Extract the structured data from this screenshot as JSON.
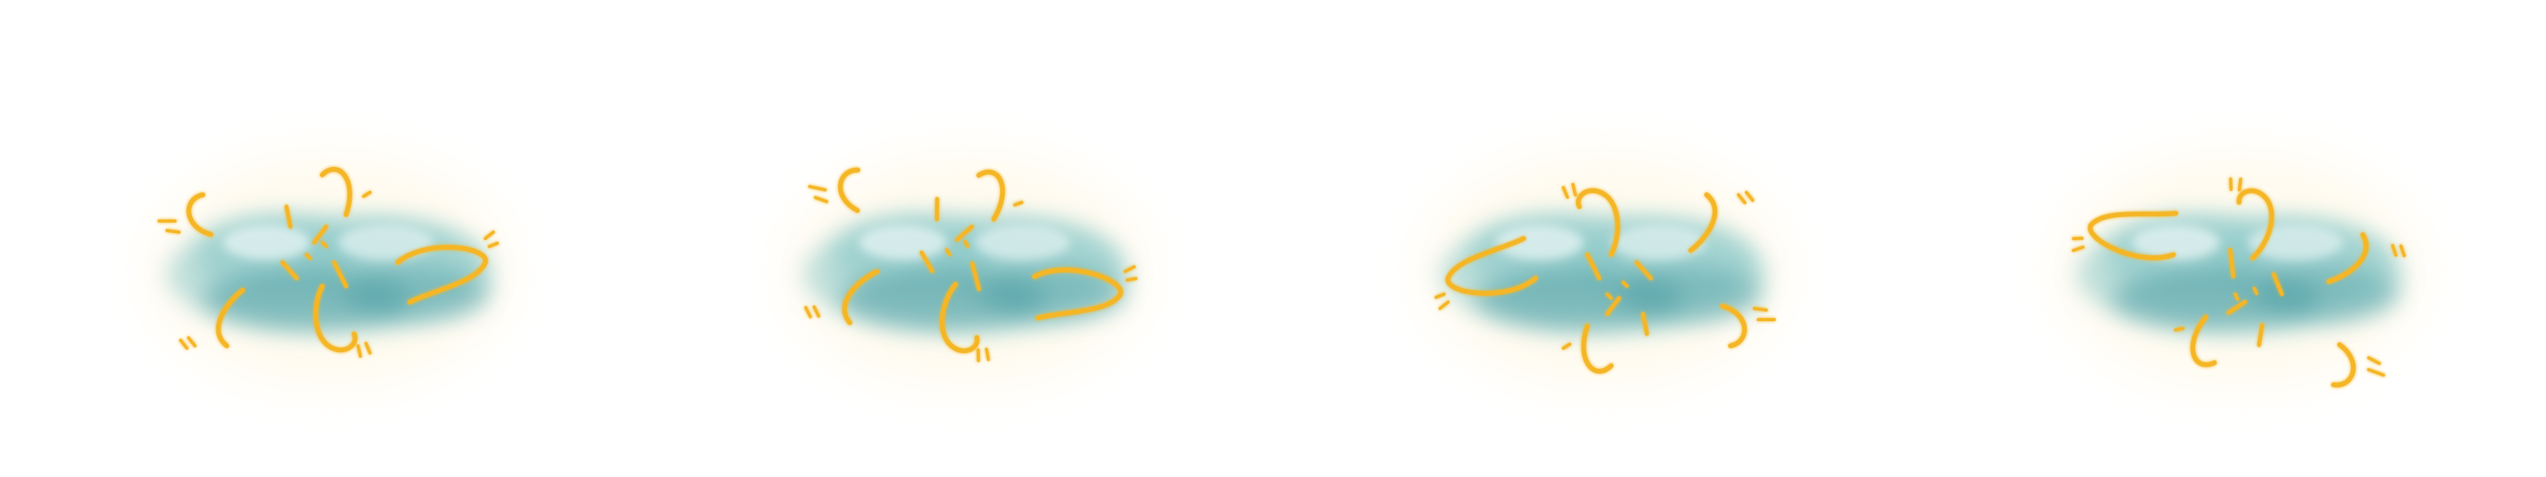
{
  "sprite_sheet": {
    "background_color": "#ffffff",
    "palette": {
      "cloud_light": "#e6f4f4",
      "cloud_mid": "#8cc9c9",
      "cloud_dark": "#4d9ea4",
      "spark": "#f5b625",
      "spark_glow": "#fde8a8",
      "halo": "#fffbef"
    },
    "frames": [
      {
        "name": "frame-1",
        "spark_rotation_deg": 0
      },
      {
        "name": "frame-2",
        "spark_rotation_deg": 12
      },
      {
        "name": "frame-3",
        "spark_rotation_deg": 180
      },
      {
        "name": "frame-4",
        "spark_rotation_deg": 200
      }
    ]
  }
}
